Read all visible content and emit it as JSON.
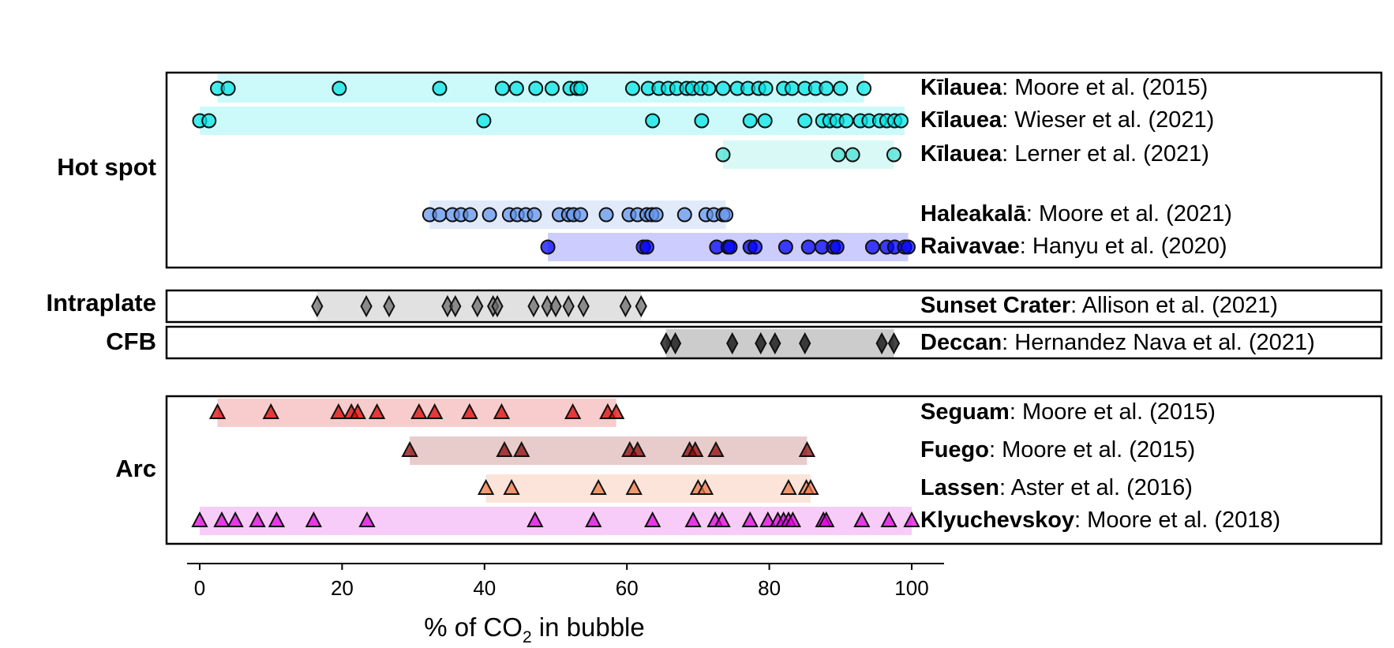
{
  "chart_data": {
    "type": "scatter",
    "xlabel_parts": {
      "pre": "% of CO",
      "sub": "2",
      "post": " in bubble"
    },
    "xlim": [
      -2,
      104
    ],
    "xticks": [
      0,
      20,
      40,
      60,
      80,
      100
    ],
    "grid": false,
    "panels": [
      {
        "group": "Hot spot",
        "series": [
          {
            "volcano": "Kīlauea",
            "citation": ": Moore et al. (2015)",
            "marker": "circle",
            "color": "#00e5e5",
            "range": [
              2.5,
              93.3
            ],
            "values": [
              2.5,
              4,
              19.6,
              33.7,
              42.5,
              44.5,
              47.2,
              49.5,
              52,
              53,
              53.5,
              60.8,
              63,
              64.5,
              65.8,
              67,
              68.4,
              69.2,
              70.4,
              71.5,
              73.5,
              75.5,
              77,
              78.5,
              79.5,
              82,
              83.2,
              85,
              86.5,
              88,
              90,
              93.3
            ]
          },
          {
            "volcano": "Kīlauea",
            "citation": ": Wieser et al. (2021)",
            "marker": "circle",
            "color": "#00e5e5",
            "range": [
              0,
              99
            ],
            "values": [
              0,
              1.3,
              39.9,
              63.6,
              70.5,
              77.3,
              79.4,
              85,
              87.5,
              88.5,
              89.5,
              90.8,
              92.8,
              94,
              95.5,
              96.5,
              97.6,
              98.5
            ]
          },
          {
            "volcano": "Kīlauea",
            "citation": ": Lerner et al. (2021)",
            "marker": "circle",
            "color": "#40e0d0",
            "range": [
              73.5,
              97.5
            ],
            "values": [
              73.5,
              89.7,
              91.7,
              97.5
            ]
          },
          {
            "volcano": "Haleakalā",
            "citation": ": Moore et al. (2021)",
            "marker": "circle",
            "color": "#6495ed",
            "range": [
              32.3,
              73.9
            ],
            "values": [
              32.3,
              33.7,
              35.5,
              36.7,
              38,
              40.7,
              43.5,
              44.6,
              45.8,
              47,
              50.5,
              51.8,
              52.5,
              53.5,
              57.1,
              60.3,
              61.5,
              62.8,
              63.5,
              64.1,
              68.1,
              71.1,
              72.2,
              73.5,
              73.9
            ]
          },
          {
            "volcano": "Raivavae",
            "citation": ": Hanyu et al. (2020)",
            "marker": "circle",
            "color": "#0000ff",
            "range": [
              48.9,
              99.5
            ],
            "values": [
              48.9,
              62.3,
              62.8,
              72.6,
              74.2,
              74.5,
              77.3,
              78,
              82.3,
              85.5,
              87.4,
              89,
              89.5,
              94.5,
              96.5,
              97.6,
              99,
              99.5
            ]
          }
        ]
      },
      {
        "group": "Intraplate",
        "series": [
          {
            "volcano": "Sunset Crater",
            "citation": ": Allison et al. (2021)",
            "marker": "diamond",
            "color": "#696969",
            "range": [
              16.5,
              62
            ],
            "values": [
              16.5,
              23.4,
              26.6,
              34.8,
              35.9,
              39,
              41.2,
              41.8,
              46.9,
              48.8,
              50,
              51.8,
              53.9,
              59.8,
              62
            ]
          }
        ]
      },
      {
        "group": "CFB",
        "series": [
          {
            "volcano": "Deccan",
            "citation": ": Hernandez Nava et al. (2021)",
            "marker": "diamond",
            "color": "#000000",
            "range": [
              65.5,
              97.5
            ],
            "values": [
              65.5,
              66.8,
              74.8,
              78.8,
              80.8,
              85,
              95.8,
              97.5
            ]
          }
        ]
      },
      {
        "group": "Arc",
        "series": [
          {
            "volcano": "Seguam",
            "citation": ": Moore et al. (2015)",
            "marker": "triangle",
            "color": "#dd0000",
            "range": [
              2.5,
              58.5
            ],
            "values": [
              2.5,
              10,
              19.5,
              21.3,
              22.2,
              24.9,
              30.8,
              33,
              37.9,
              42.4,
              52.4,
              57.3,
              58.5
            ]
          },
          {
            "volcano": "Fuego",
            "citation": ": Moore et al. (2015)",
            "marker": "triangle",
            "color": "#8b0000",
            "range": [
              29.5,
              85.3
            ],
            "values": [
              29.5,
              42.8,
              45.2,
              60.4,
              61.5,
              68.8,
              69.6,
              72.5,
              85.3
            ]
          },
          {
            "volcano": "Lassen",
            "citation": ": Aster et al. (2016)",
            "marker": "triangle",
            "color": "#ee7744",
            "range": [
              40.2,
              85.8
            ],
            "values": [
              40.2,
              43.8,
              56,
              61,
              70,
              71,
              82.7,
              85.2,
              85.8
            ]
          },
          {
            "volcano": "Klyuchevskoy",
            "citation": ": Moore et al. (2018)",
            "marker": "triangle",
            "color": "#dd00dd",
            "range": [
              0,
              100
            ],
            "values": [
              0,
              3.1,
              5,
              8.1,
              10.8,
              16,
              23.5,
              47.1,
              55.3,
              63.6,
              69.3,
              72.4,
              73.4,
              77.3,
              79.8,
              81.2,
              82,
              82.7,
              83.3,
              87.6,
              88,
              93,
              96.8,
              100
            ]
          }
        ]
      }
    ]
  }
}
